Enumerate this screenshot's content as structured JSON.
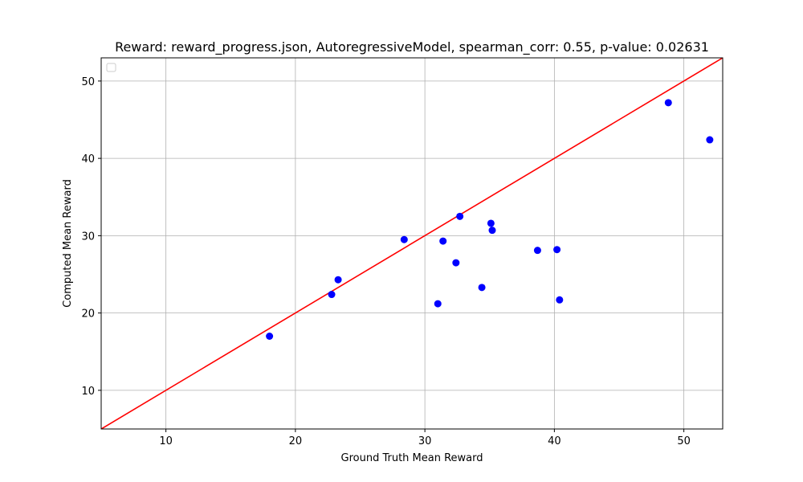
{
  "chart_data": {
    "type": "scatter",
    "title": "Reward: reward_progress.json, AutoregressiveModel, spearman_corr: 0.55, p-value: 0.02631",
    "xlabel": "Ground Truth Mean Reward",
    "ylabel": "Computed Mean Reward",
    "xlim": [
      5,
      53
    ],
    "ylim": [
      5,
      53
    ],
    "xticks": [
      10,
      20,
      30,
      40,
      50
    ],
    "yticks": [
      10,
      20,
      30,
      40,
      50
    ],
    "grid": true,
    "legend": "top-left",
    "legend_entries": [],
    "point_color": "#0000ff",
    "reference_line": {
      "kind": "y=x",
      "color": "#ff0000"
    },
    "series": [
      {
        "x": [
          18.0,
          22.8,
          23.3,
          28.4,
          31.0,
          31.4,
          32.4,
          32.7,
          34.4,
          35.1,
          35.2,
          38.7,
          40.2,
          40.4,
          48.8,
          52.0
        ],
        "y": [
          17.0,
          22.4,
          24.3,
          29.5,
          21.2,
          29.3,
          26.5,
          32.5,
          23.3,
          31.6,
          30.7,
          28.1,
          28.2,
          21.7,
          47.2,
          42.4
        ]
      }
    ]
  }
}
